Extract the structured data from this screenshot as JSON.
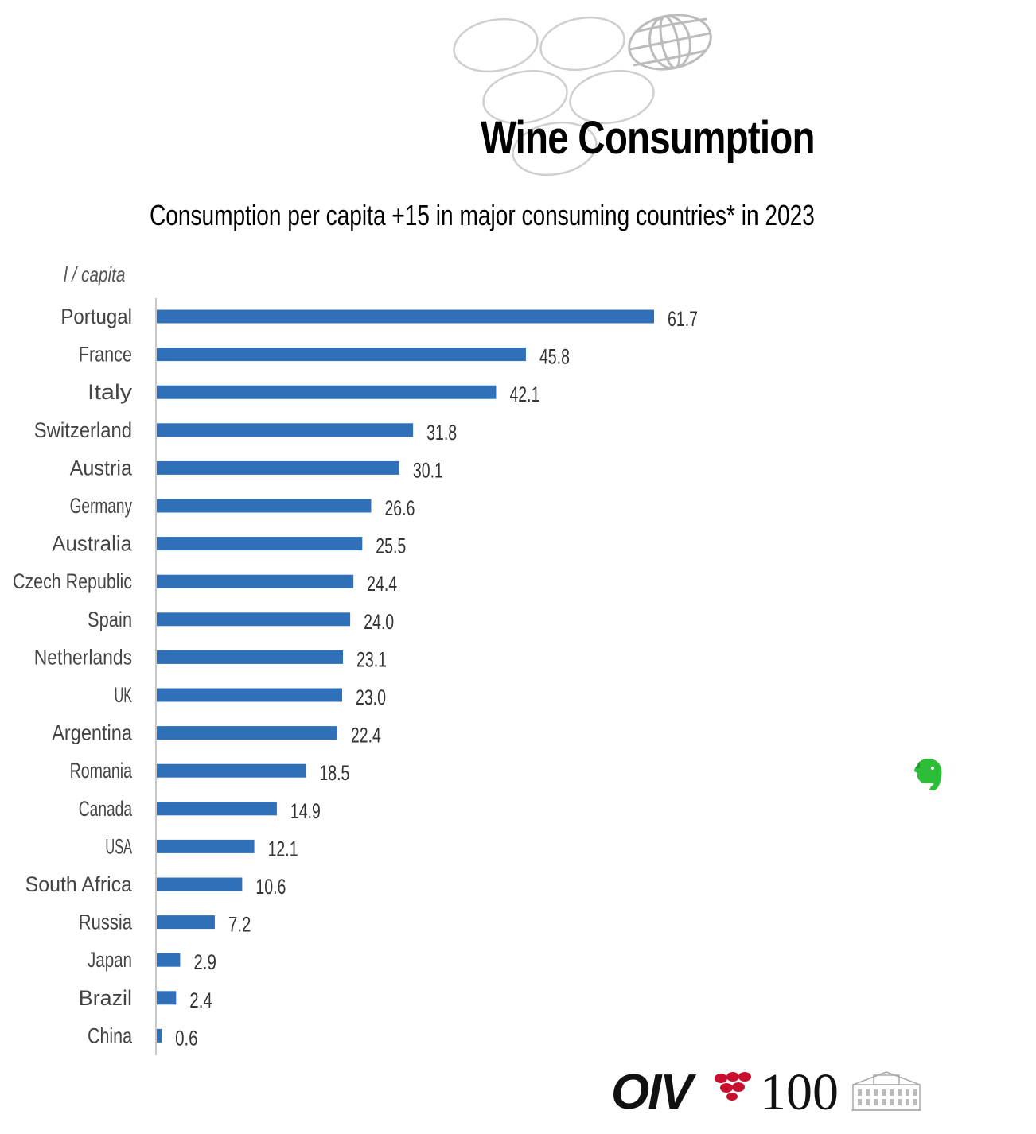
{
  "header": {
    "title": "Wine Consumption",
    "subtitle": "Consumption per capita +15 in major consuming countries* in 2023",
    "unit_label": "l / capita"
  },
  "footer": {
    "logo_text": "OIV",
    "logo_number": "100"
  },
  "colors": {
    "bar": "#2F70B8",
    "axis": "#c8c8c8",
    "label": "#444444",
    "value": "#333333",
    "evernote": "#2DBE37"
  },
  "icons": [
    "globe-logo-icon",
    "grape-cluster-icon",
    "building-icon",
    "evernote-elephant-icon"
  ],
  "chart_data": {
    "type": "bar",
    "orientation": "horizontal",
    "categories": [
      "Portugal",
      "France",
      "Italy",
      "Switzerland",
      "Austria",
      "Germany",
      "Australia",
      "Czech Republic",
      "Spain",
      "Netherlands",
      "UK",
      "Argentina",
      "Romania",
      "Canada",
      "USA",
      "South Africa",
      "Russia",
      "Japan",
      "Brazil",
      "China"
    ],
    "values": [
      61.7,
      45.8,
      42.1,
      31.8,
      30.1,
      26.6,
      25.5,
      24.4,
      24.0,
      23.1,
      23.0,
      22.4,
      18.5,
      14.9,
      12.1,
      10.6,
      7.2,
      2.9,
      2.4,
      0.6
    ],
    "value_labels": [
      "61.7",
      "45.8",
      "42.1",
      "31.8",
      "30.1",
      "26.6",
      "25.5",
      "24.4",
      "24.0",
      "23.1",
      "23.0",
      "22.4",
      "18.5",
      "14.9",
      "12.1",
      "10.6",
      "7.2",
      "2.9",
      "2.4",
      "0.6"
    ],
    "title": "Consumption per capita +15 in major consuming countries* in 2023",
    "xlabel": "",
    "ylabel": "l / capita",
    "xlim": [
      0,
      61.7
    ],
    "grid": false,
    "legend": "none"
  }
}
